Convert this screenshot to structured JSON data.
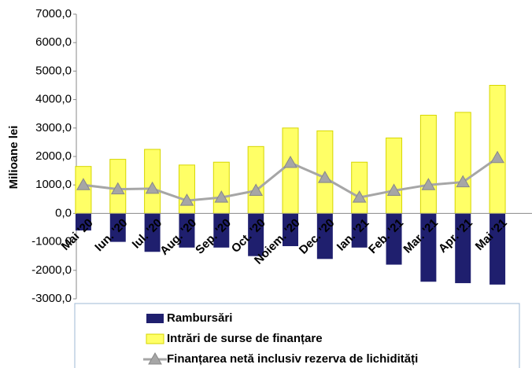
{
  "chart_data": {
    "type": "bar_line",
    "y_label": "Milioane lei",
    "categories": [
      "Mai '20",
      "Iun. '20",
      "Iul. '20",
      "Aug. '20",
      "Sep. '20",
      "Oct. '20",
      "Noiem. '20",
      "Dec. '20",
      "Ian. '21",
      "Feb. '21",
      "Mar. '21",
      "Apr. '21",
      "Mai '21"
    ],
    "series": [
      {
        "name": "Rambursări",
        "color": "#1f1f6e",
        "kind": "bar",
        "values": [
          -600,
          -1000,
          -1350,
          -1200,
          -1200,
          -1500,
          -1150,
          -1600,
          -1200,
          -1800,
          -2400,
          -2450,
          -2500
        ]
      },
      {
        "name": "Intrări de surse de finanțare",
        "color": "#ffff66",
        "kind": "bar",
        "values": [
          1650,
          1900,
          2250,
          1700,
          1800,
          2350,
          3000,
          2900,
          1800,
          2650,
          3450,
          3550,
          4500
        ]
      },
      {
        "name": "Finanțarea netă inclusiv rezerva de lichidități",
        "color": "#a6a6a6",
        "kind": "line",
        "values": [
          1000,
          850,
          870,
          450,
          560,
          800,
          1780,
          1250,
          560,
          800,
          1000,
          1100,
          1950
        ]
      }
    ],
    "ylim": [
      -3000,
      7000
    ],
    "yticks": [
      {
        "value": -3000,
        "label": "-3000,0"
      },
      {
        "value": -2000,
        "label": "-2000,0"
      },
      {
        "value": -1000,
        "label": "-1000,0"
      },
      {
        "value": 0,
        "label": "0,0"
      },
      {
        "value": 1000,
        "label": "1000,0"
      },
      {
        "value": 2000,
        "label": "2000,0"
      },
      {
        "value": 3000,
        "label": "3000,0"
      },
      {
        "value": 4000,
        "label": "4000,0"
      },
      {
        "value": 5000,
        "label": "5000,0"
      },
      {
        "value": 6000,
        "label": "6000,0"
      },
      {
        "value": 7000,
        "label": "7000,0"
      }
    ],
    "grid": false
  }
}
